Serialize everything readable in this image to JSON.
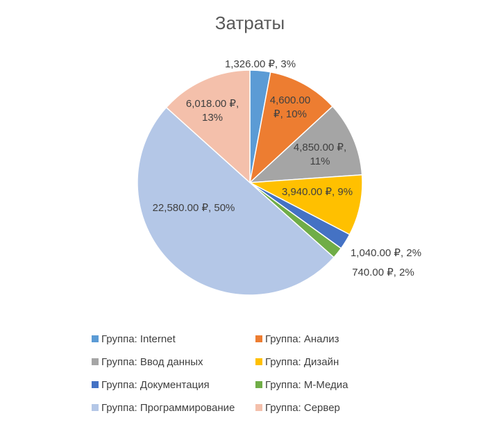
{
  "chart_data": {
    "type": "pie",
    "title": "Затраты",
    "legend_position": "bottom",
    "categories": [
      "Группа: Internet",
      "Группа: Анализ",
      "Группа: Ввод данных",
      "Группа: Дизайн",
      "Группа: Документация",
      "Группа: М-Медиа",
      "Группа: Программирование",
      "Группа: Сервер"
    ],
    "values": [
      1326,
      4600,
      4850,
      3940,
      1040,
      740,
      22580,
      6018
    ],
    "colors": [
      "#5B9BD5",
      "#ED7D31",
      "#A5A5A5",
      "#FFC000",
      "#4472C4",
      "#70AD47",
      "#B4C7E7",
      "#F4C0AB"
    ],
    "data_labels": [
      [
        "1,326.00 ₽, 3%"
      ],
      [
        "4,600.00",
        "₽, 10%"
      ],
      [
        "4,850.00 ₽,",
        "11%"
      ],
      [
        "3,940.00 ₽, 9%"
      ],
      [
        "1,040.00 ₽, 2%"
      ],
      [
        "740.00 ₽, 2%"
      ],
      [
        "22,580.00 ₽, 50%"
      ],
      [
        "6,018.00 ₽,",
        "13%"
      ]
    ]
  }
}
